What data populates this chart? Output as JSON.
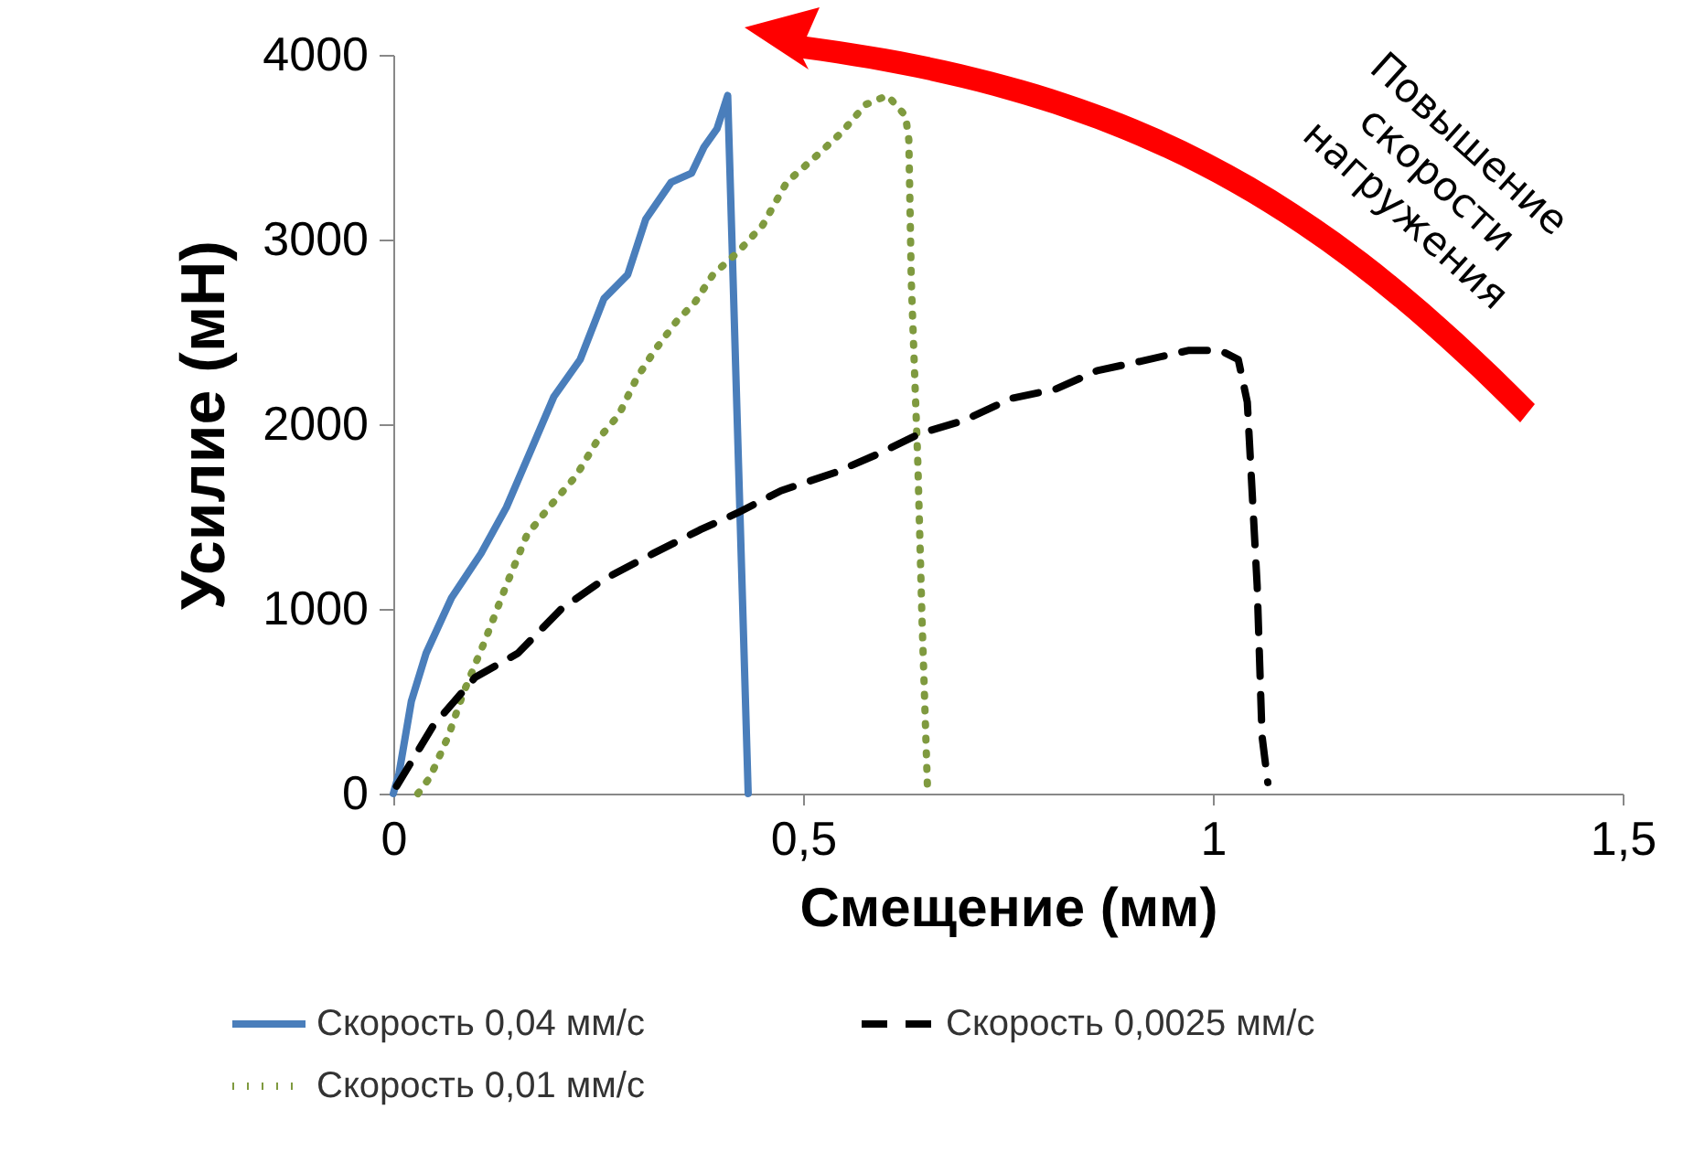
{
  "chart_data": {
    "type": "line",
    "xlabel": "Смещение (мм)",
    "ylabel": "Усилие (мН)",
    "xlim": [
      0,
      1.5
    ],
    "xticks": [
      {
        "value": 0,
        "label": "0"
      },
      {
        "value": 0.5,
        "label": "0,5"
      },
      {
        "value": 1,
        "label": "1"
      },
      {
        "value": 1.5,
        "label": "1,5"
      }
    ],
    "ylim": [
      0,
      4000
    ],
    "yticks": [
      0,
      1000,
      2000,
      3000,
      4000
    ],
    "grid": false,
    "legend": "bottom",
    "marker": "none",
    "annotations": [
      "Повышение скорости нагружения"
    ],
    "series": [
      {
        "name": "Скорость 0,04 мм/с",
        "color": "#4a7ebb",
        "line_style": "solid",
        "x": [
          0,
          0.007,
          0.022,
          0.04,
          0.071,
          0.107,
          0.138,
          0.167,
          0.196,
          0.228,
          0.257,
          0.286,
          0.308,
          0.339,
          0.364,
          0.379,
          0.395,
          0.408,
          0.433
        ],
        "values": [
          0,
          110,
          500,
          760,
          1060,
          1300,
          1550,
          1850,
          2150,
          2350,
          2680,
          2810,
          3110,
          3310,
          3360,
          3500,
          3600,
          3780,
          0
        ]
      },
      {
        "name": "Скорость 0,01 мм/с",
        "color": "#7f9a3f",
        "line_style": "dotted",
        "x": [
          0.03,
          0.045,
          0.067,
          0.085,
          0.112,
          0.138,
          0.163,
          0.19,
          0.223,
          0.25,
          0.275,
          0.297,
          0.319,
          0.346,
          0.368,
          0.39,
          0.42,
          0.451,
          0.48,
          0.518,
          0.547,
          0.576,
          0.603,
          0.625,
          0.629,
          0.632,
          0.64,
          0.645,
          0.652
        ],
        "values": [
          0,
          90,
          310,
          540,
          830,
          1130,
          1400,
          1550,
          1720,
          1920,
          2050,
          2250,
          2400,
          2560,
          2660,
          2810,
          2930,
          3080,
          3310,
          3460,
          3580,
          3730,
          3780,
          3670,
          3540,
          2780,
          1790,
          960,
          0
        ]
      },
      {
        "name": "Скорость 0,0025 мм/с",
        "color": "#000000",
        "line_style": "dashed",
        "x": [
          0.004,
          0.049,
          0.1,
          0.152,
          0.205,
          0.257,
          0.317,
          0.375,
          0.42,
          0.473,
          0.54,
          0.592,
          0.643,
          0.696,
          0.754,
          0.808,
          0.859,
          0.911,
          0.971,
          1.009,
          1.031,
          1.042,
          1.054,
          1.06,
          1.067
        ],
        "values": [
          40,
          370,
          630,
          760,
          1000,
          1160,
          1300,
          1430,
          1520,
          1640,
          1740,
          1840,
          1950,
          2020,
          2140,
          2190,
          2290,
          2340,
          2400,
          2400,
          2350,
          2120,
          1130,
          310,
          60
        ]
      }
    ]
  }
}
